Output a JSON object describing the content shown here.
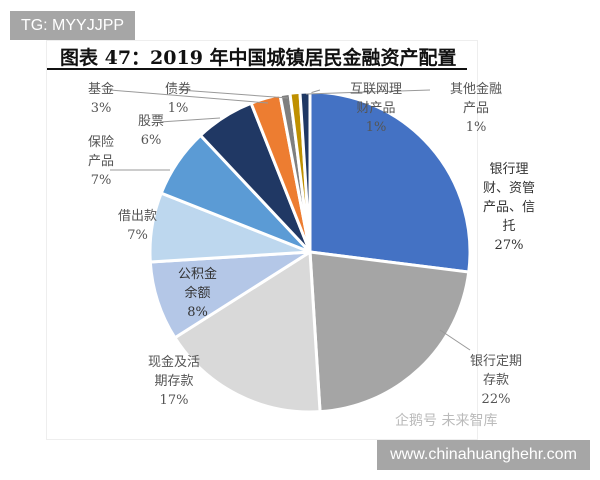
{
  "watermarks": {
    "top": "TG: MYYJJPP",
    "bottom": "www.chinahuanghehr.com",
    "source": "企鹅号 未来智库"
  },
  "chart_data": {
    "type": "pie",
    "title": "图表 47：2019 年中国城镇居民金融资产配置",
    "start": "12 o'clock, clockwise",
    "slices": [
      {
        "name": "银行理财、资管产品、信托",
        "label": "银行理\n财、资管\n产品、信\n托",
        "value": 27,
        "pct": "27%",
        "color": "#4472C4"
      },
      {
        "name": "银行定期存款",
        "label": "银行定期\n存款",
        "value": 22,
        "pct": "22%",
        "color": "#A5A5A5"
      },
      {
        "name": "现金及活期存款",
        "label": "现金及活\n期存款",
        "value": 17,
        "pct": "17%",
        "color": "#D9D9D9"
      },
      {
        "name": "公积金余额",
        "label": "公积金\n余额",
        "value": 8,
        "pct": "8%",
        "color": "#B4C7E7"
      },
      {
        "name": "借出款",
        "label": "借出款",
        "value": 7,
        "pct": "7%",
        "color": "#BDD7EE"
      },
      {
        "name": "保险产品",
        "label": "保险\n产品",
        "value": 7,
        "pct": "7%",
        "color": "#5B9BD5"
      },
      {
        "name": "股票",
        "label": "股票",
        "value": 6,
        "pct": "6%",
        "color": "#203864"
      },
      {
        "name": "基金",
        "label": "基金",
        "value": 3,
        "pct": "3%",
        "color": "#ED7D31"
      },
      {
        "name": "债券",
        "label": "债券",
        "value": 1,
        "pct": "1%",
        "color": "#7F7F7F"
      },
      {
        "name": "互联网理财产品",
        "label": "互联网理\n财产品",
        "value": 1,
        "pct": "1%",
        "color": "#BF9000"
      },
      {
        "name": "其他金融产品",
        "label": "其他金融\n产品",
        "value": 1,
        "pct": "1%",
        "color": "#1F3864"
      }
    ]
  }
}
